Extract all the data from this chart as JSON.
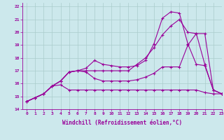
{
  "xlabel": "Windchill (Refroidissement éolien,°C)",
  "bg_color": "#cce8ec",
  "grid_color": "#aacccc",
  "line_color": "#990099",
  "xlim": [
    -0.5,
    23
  ],
  "ylim": [
    14,
    22.3
  ],
  "xticks": [
    0,
    1,
    2,
    3,
    4,
    5,
    6,
    7,
    8,
    9,
    10,
    11,
    12,
    13,
    14,
    15,
    16,
    17,
    18,
    19,
    20,
    21,
    22,
    23
  ],
  "yticks": [
    14,
    15,
    16,
    17,
    18,
    19,
    20,
    21,
    22
  ],
  "series": [
    [
      14.6,
      14.9,
      15.2,
      15.8,
      15.9,
      15.5,
      15.5,
      15.5,
      15.5,
      15.5,
      15.5,
      15.5,
      15.5,
      15.5,
      15.5,
      15.5,
      15.5,
      15.5,
      15.5,
      15.5,
      15.5,
      15.3,
      15.2,
      15.2
    ],
    [
      14.6,
      14.9,
      15.2,
      15.8,
      16.2,
      16.9,
      17.0,
      16.9,
      16.4,
      16.2,
      16.2,
      16.2,
      16.2,
      16.3,
      16.5,
      16.8,
      17.3,
      17.3,
      17.3,
      19.0,
      19.9,
      19.9,
      15.5,
      15.2
    ],
    [
      14.6,
      14.9,
      15.2,
      15.8,
      16.2,
      16.9,
      17.0,
      17.2,
      17.8,
      17.5,
      17.4,
      17.3,
      17.3,
      17.4,
      17.8,
      19.1,
      21.1,
      21.6,
      21.5,
      19.1,
      17.5,
      17.4,
      15.5,
      15.2
    ],
    [
      14.6,
      14.9,
      15.2,
      15.8,
      16.2,
      16.9,
      17.0,
      17.0,
      17.0,
      17.0,
      17.0,
      17.0,
      17.0,
      17.5,
      18.0,
      18.8,
      19.8,
      20.5,
      21.0,
      20.0,
      19.9,
      17.5,
      15.5,
      15.2
    ]
  ]
}
